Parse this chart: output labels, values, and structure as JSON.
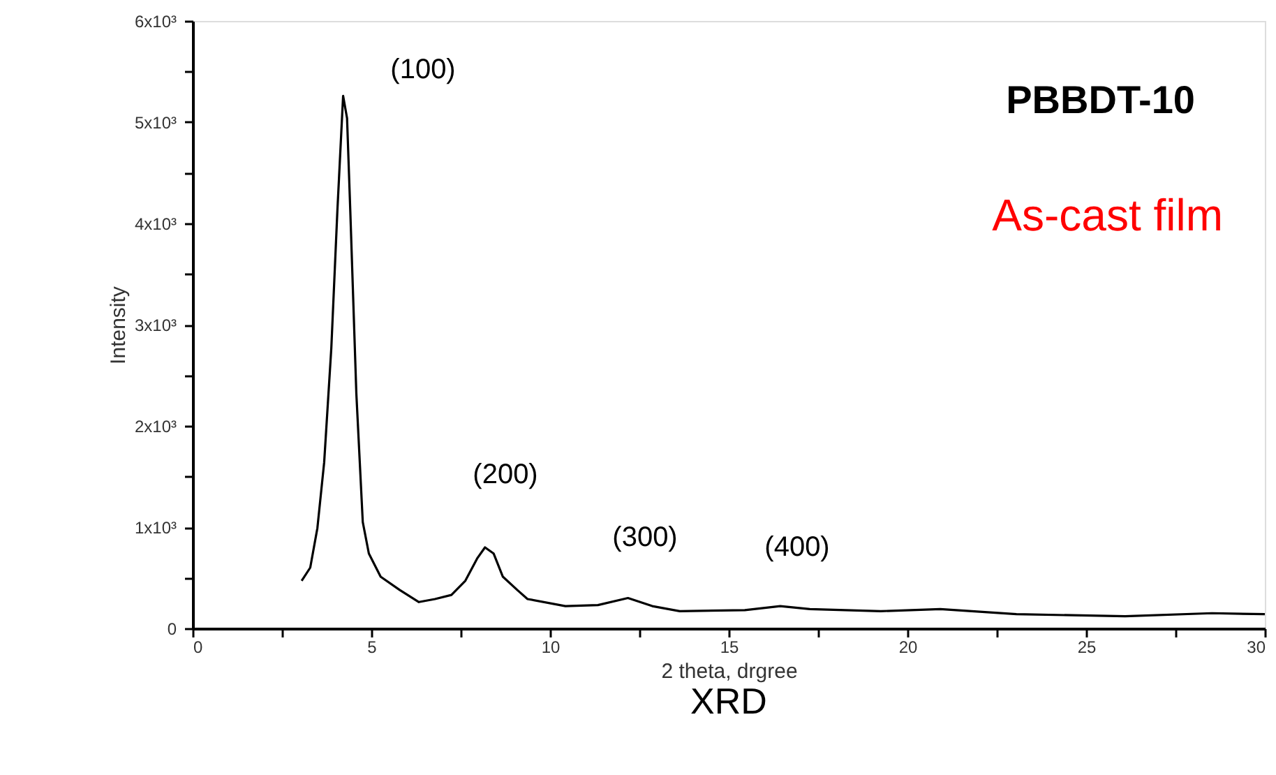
{
  "chart_data": {
    "type": "line",
    "title": "XRD",
    "xlabel": "2 theta, drgree",
    "ylabel": "Intensity",
    "x": [
      3.05,
      3.29,
      3.49,
      3.68,
      3.88,
      4.05,
      4.21,
      4.32,
      4.41,
      4.58,
      4.76,
      4.93,
      5.26,
      5.79,
      6.33,
      6.78,
      7.24,
      7.63,
      7.96,
      8.18,
      8.42,
      8.68,
      9.08,
      9.37,
      10.43,
      11.34,
      12.18,
      12.86,
      13.63,
      15.45,
      16.44,
      17.27,
      19.25,
      20.92,
      23.05,
      26.09,
      28.52,
      30.0
    ],
    "series": [
      {
        "color": "#000000",
        "values": [
          470,
          600,
          990,
          1640,
          2770,
          4130,
          5260,
          5040,
          4130,
          2320,
          1050,
          740,
          510,
          380,
          260,
          290,
          330,
          470,
          690,
          800,
          740,
          510,
          380,
          290,
          220,
          230,
          300,
          220,
          170,
          180,
          220,
          190,
          170,
          190,
          140,
          120,
          150,
          140
        ]
      }
    ],
    "xlim": [
      0,
      30
    ],
    "ylim": [
      0,
      6000
    ],
    "xticks": [
      0,
      {
        "value": 2.5,
        "label": null
      },
      5,
      {
        "value": 7.5,
        "label": null
      },
      10,
      {
        "value": 12.5,
        "label": null
      },
      15,
      {
        "value": 17.5,
        "label": null
      },
      20,
      {
        "value": 22.5,
        "label": null
      },
      25,
      {
        "value": 27.5,
        "label": null
      },
      30
    ],
    "yticks": [
      0,
      {
        "value": 500,
        "label": null
      },
      {
        "value": 1000,
        "label": "1x10³"
      },
      {
        "value": 1500,
        "label": null
      },
      {
        "value": 2000,
        "label": "2x10³"
      },
      {
        "value": 2500,
        "label": null
      },
      {
        "value": 3000,
        "label": "3x10³"
      },
      {
        "value": 3500,
        "label": null
      },
      {
        "value": 4000,
        "label": "4x10³"
      },
      {
        "value": 4500,
        "label": null
      },
      {
        "value": 5000,
        "label": "5x10³"
      },
      {
        "value": 5500,
        "label": null
      },
      {
        "value": 6000,
        "label": "6x10³"
      }
    ],
    "grid": false,
    "marker": "none",
    "line_style": "solid",
    "annotations": [
      "(100)",
      "(200)",
      "(300)",
      "(400)",
      "PBBDT-10",
      "As-cast film"
    ]
  }
}
